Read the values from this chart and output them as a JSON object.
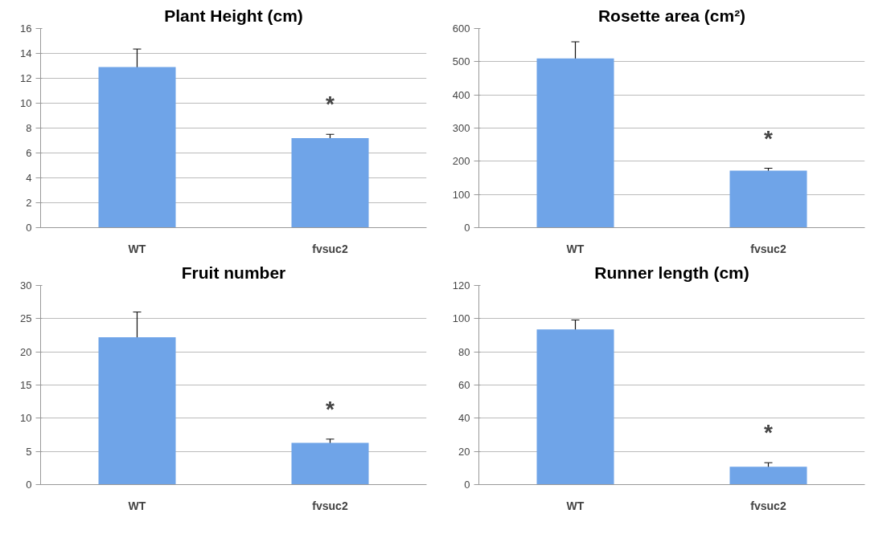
{
  "chart_data": [
    {
      "type": "bar",
      "title": "Plant Height (cm)",
      "categories": [
        "WT",
        "fvsuc2"
      ],
      "values": [
        12.9,
        7.2
      ],
      "errors": [
        1.45,
        0.3
      ],
      "color": "#6fa4e8",
      "ylim": [
        0,
        16
      ],
      "yticks": [
        0,
        2,
        4,
        6,
        8,
        10,
        12,
        14,
        16
      ],
      "grid": "y",
      "annotations": [
        "*"
      ]
    },
    {
      "type": "bar",
      "title": "Rosette area (cm²)",
      "categories": [
        "WT",
        "fvsuc2"
      ],
      "values": [
        510,
        172
      ],
      "errors": [
        50,
        7
      ],
      "color": "#6fa4e8",
      "ylim": [
        0,
        600
      ],
      "yticks": [
        0,
        100,
        200,
        300,
        400,
        500,
        600
      ],
      "grid": "y",
      "annotations": [
        "*"
      ]
    },
    {
      "type": "bar",
      "title": "Fruit number",
      "categories": [
        "WT",
        "fvsuc2"
      ],
      "values": [
        22.2,
        6.3
      ],
      "errors": [
        3.8,
        0.55
      ],
      "color": "#6fa4e8",
      "ylim": [
        0,
        30
      ],
      "yticks": [
        0,
        5,
        10,
        15,
        20,
        25,
        30
      ],
      "grid": "y",
      "annotations": [
        "*"
      ]
    },
    {
      "type": "bar",
      "title": "Runner length (cm)",
      "categories": [
        "WT",
        "fvsuc2"
      ],
      "values": [
        93.5,
        10.8
      ],
      "errors": [
        5.7,
        2.4
      ],
      "color": "#6fa4e8",
      "ylim": [
        0,
        120
      ],
      "yticks": [
        0,
        20,
        40,
        60,
        80,
        100,
        120
      ],
      "grid": "y",
      "annotations": [
        "*"
      ]
    }
  ]
}
